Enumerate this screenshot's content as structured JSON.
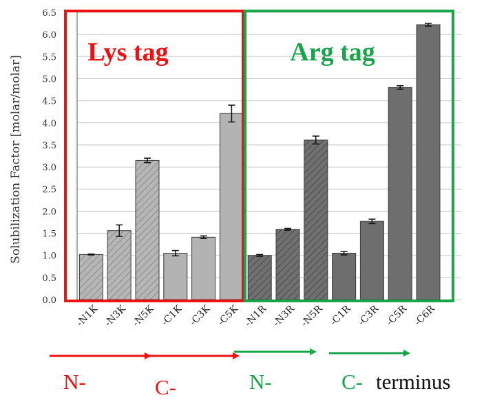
{
  "chart_data": {
    "type": "bar",
    "ylabel": "Solubilization Factor [molar/molar]",
    "ylim": [
      0,
      6.5
    ],
    "yticks": [
      "0.0",
      "0.5",
      "1.0",
      "1.5",
      "2.0",
      "2.5",
      "3.0",
      "3.5",
      "4.0",
      "4.5",
      "5.0",
      "5.5",
      "6.0",
      "6.5"
    ],
    "grid": true,
    "categories": [
      "-N1K",
      "-N3K",
      "-N5K",
      "-C1K",
      "-C3K",
      "-C5K",
      "-N1R",
      "-N3R",
      "-N5R",
      "-C1R",
      "-C3R",
      "-C5R",
      "-C6R"
    ],
    "values": [
      1.02,
      1.56,
      3.15,
      1.05,
      1.41,
      4.21,
      1.0,
      1.59,
      3.61,
      1.05,
      1.77,
      4.8,
      6.22
    ],
    "errors": [
      0.01,
      0.13,
      0.05,
      0.06,
      0.03,
      0.19,
      0.02,
      0.02,
      0.09,
      0.04,
      0.05,
      0.04,
      0.03
    ],
    "bar_styles": [
      "light-hatched",
      "light-hatched",
      "light-hatched",
      "light",
      "light",
      "light",
      "dark-hatched",
      "dark-hatched",
      "dark-hatched",
      "dark",
      "dark",
      "dark",
      "dark"
    ],
    "groups": [
      {
        "label": "Lys tag",
        "color": "#ee1111",
        "first": 0,
        "last": 5
      },
      {
        "label": "Arg tag",
        "color": "#1aa54a",
        "first": 6,
        "last": 12
      }
    ]
  },
  "annotations": {
    "n_lys": "N-",
    "c_lys": "C-",
    "n_arg": "N-",
    "c_arg": "C-",
    "terminus": "terminus"
  },
  "colors": {
    "red": "#ee1111",
    "green": "#1aa54a",
    "light_bar": "#b3b3b3",
    "dark_bar": "#6e6e6e",
    "grid": "#c8c8c8"
  }
}
